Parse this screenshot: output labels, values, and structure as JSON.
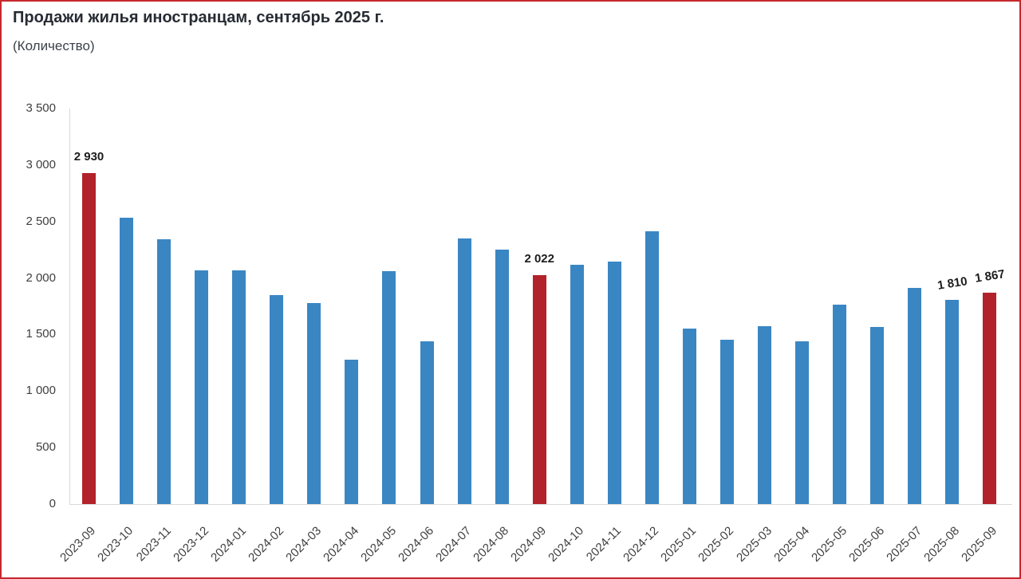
{
  "title": "Продажи жилья иностранцам, сентябрь 2025 г.",
  "subtitle": "(Количество)",
  "colors": {
    "bar_default": "#3A86C3",
    "bar_highlight": "#B2222A",
    "frame_border": "#C5282D",
    "axis_line": "#D9D9D9",
    "title_text": "#272C34",
    "subtitle_text": "#3C424B",
    "tick_text": "#3F3F3F",
    "data_label_text": "#1C1C1C"
  },
  "chart_data": {
    "type": "bar",
    "title": "Продажи жилья иностранцам, сентябрь 2025 г.",
    "subtitle": "(Количество)",
    "categories": [
      "2023-09",
      "2023-10",
      "2023-11",
      "2023-12",
      "2024-01",
      "2024-02",
      "2024-03",
      "2024-04",
      "2024-05",
      "2024-06",
      "2024-07",
      "2024-08",
      "2024-09",
      "2024-10",
      "2024-11",
      "2024-12",
      "2025-01",
      "2025-02",
      "2025-03",
      "2025-04",
      "2025-05",
      "2025-06",
      "2025-07",
      "2025-08",
      "2025-09"
    ],
    "values": [
      2930,
      2530,
      2342,
      2066,
      2066,
      1848,
      1781,
      1276,
      2060,
      1443,
      2350,
      2253,
      2022,
      2119,
      2147,
      2413,
      1553,
      1457,
      1572,
      1438,
      1767,
      1567,
      1911,
      1810,
      1867
    ],
    "highlighted_categories": [
      "2023-09",
      "2024-09",
      "2025-09"
    ],
    "data_labels": [
      {
        "category": "2023-09",
        "text": "2 930",
        "tilted": false
      },
      {
        "category": "2024-09",
        "text": "2 022",
        "tilted": false
      },
      {
        "category": "2025-08",
        "text": "1 810",
        "tilted": true
      },
      {
        "category": "2025-09",
        "text": "1 867",
        "tilted": true
      }
    ],
    "xlabel": "",
    "ylabel": "",
    "ylim": [
      0,
      3500
    ],
    "ytick_step": 500,
    "ytick_labels": [
      "3 500",
      "3 000",
      "2 500",
      "2 000",
      "1 500",
      "1 000",
      "500",
      "0"
    ],
    "grid": "off",
    "legend": "none"
  }
}
